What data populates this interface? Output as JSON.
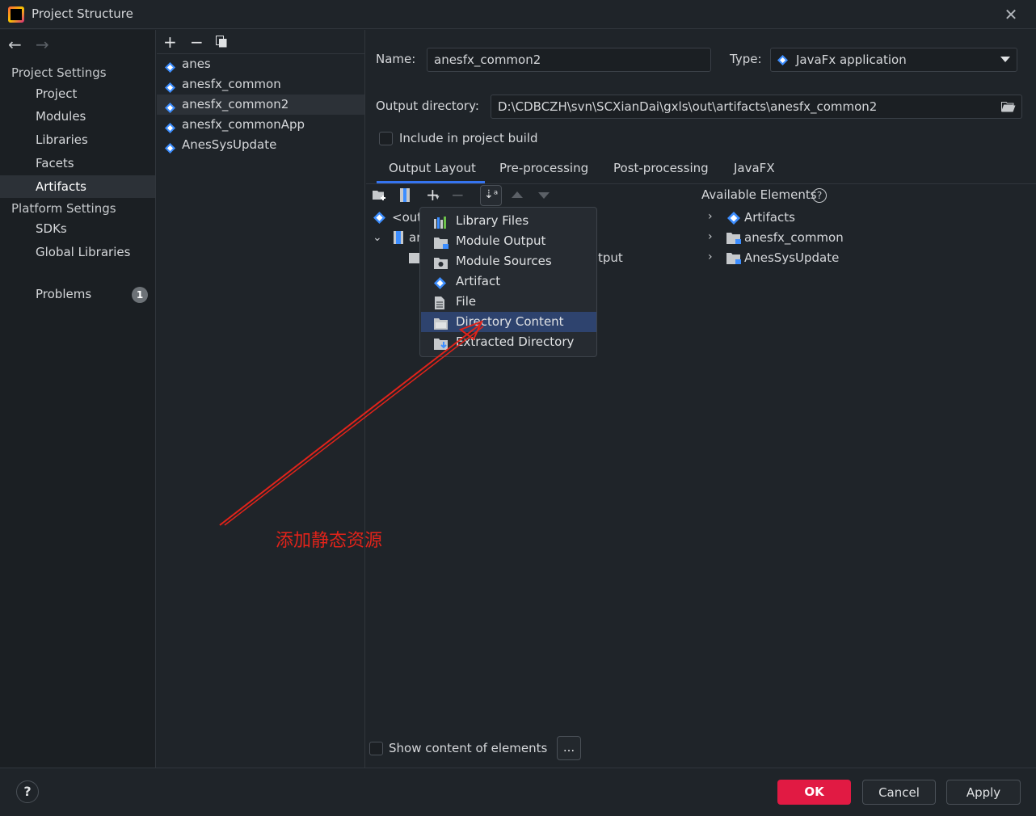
{
  "window": {
    "title": "Project Structure"
  },
  "sidebar": {
    "project_settings_header": "Project Settings",
    "project_items": [
      "Project",
      "Modules",
      "Libraries",
      "Facets",
      "Artifacts"
    ],
    "platform_settings_header": "Platform Settings",
    "platform_items": [
      "SDKs",
      "Global Libraries"
    ],
    "problems_label": "Problems",
    "problems_count": "1",
    "selected": "Artifacts"
  },
  "artifacts": {
    "items": [
      "anes",
      "anesfx_common",
      "anesfx_common2",
      "anesfx_commonApp",
      "AnesSysUpdate"
    ],
    "selected": "anesfx_common2"
  },
  "form": {
    "name_label": "Name:",
    "name_value": "anesfx_common2",
    "type_label": "Type:",
    "type_value": "JavaFx application",
    "output_label": "Output directory:",
    "output_value": "D:\\CDBCZH\\svn\\SCXianDai\\gxls\\out\\artifacts\\anesfx_common2",
    "include_label": "Include in project build",
    "include_checked": false
  },
  "tabs": [
    "Output Layout",
    "Pre-processing",
    "Post-processing",
    "JavaFX"
  ],
  "active_tab": "Output Layout",
  "layout_tree": {
    "row1": "<out",
    "row2": "ar",
    "row3_suffix": "tput"
  },
  "add_menu": {
    "items": [
      "Library Files",
      "Module Output",
      "Module Sources",
      "Artifact",
      "File",
      "Directory Content",
      "Extracted Directory"
    ],
    "highlighted": "Directory Content"
  },
  "available": {
    "header": "Available Elements",
    "items": [
      "Artifacts",
      "anesfx_common",
      "AnesSysUpdate"
    ]
  },
  "show_content_label": "Show content of elements",
  "ellipsis_button": "...",
  "buttons": {
    "ok": "OK",
    "cancel": "Cancel",
    "apply": "Apply",
    "help": "?"
  },
  "annotation": "添加静态资源",
  "colors": {
    "accent": "#3574f0",
    "ok": "#e11a43",
    "annotation": "#e2231a"
  }
}
